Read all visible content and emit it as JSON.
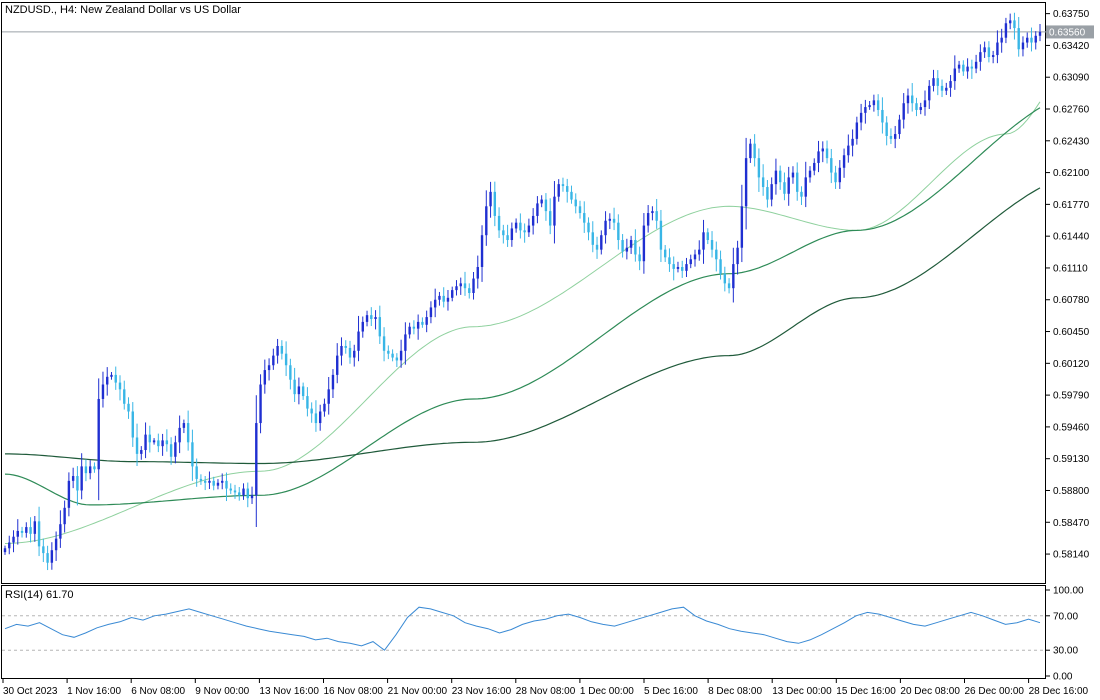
{
  "header": {
    "symbol_label": "NZDUSD., H4:  New Zealand Dollar vs US Dollar"
  },
  "price_badge": {
    "value": "0.63560"
  },
  "rsi_header": {
    "label": "RSI(14) 61.70"
  },
  "colors": {
    "bull_candle": "#1f2fd1",
    "bear_candle": "#38b6e6",
    "ma_fast": "#8fd19e",
    "ma_mid": "#2e8b57",
    "ma_slow": "#1f5a3a",
    "rsi_line": "#3a8ad4",
    "axis": "#000000",
    "price_line": "#9aa0a6"
  },
  "chart_data": [
    {
      "type": "candlestick",
      "title": "NZDUSD., H4:  New Zealand Dollar vs US Dollar",
      "x_tick_labels": [
        "30 Oct 2023",
        "1 Nov 16:00",
        "6 Nov 08:00",
        "9 Nov 00:00",
        "13 Nov 16:00",
        "16 Nov 08:00",
        "21 Nov 00:00",
        "23 Nov 16:00",
        "28 Nov 08:00",
        "1 Dec 00:00",
        "5 Dec 16:00",
        "8 Dec 08:00",
        "13 Dec 00:00",
        "15 Dec 16:00",
        "20 Dec 08:00",
        "26 Dec 00:00",
        "28 Dec 16:00"
      ],
      "y_tick_labels": [
        "0.63750",
        "0.63420",
        "0.63090",
        "0.62760",
        "0.62430",
        "0.62100",
        "0.61770",
        "0.61440",
        "0.61110",
        "0.60780",
        "0.60450",
        "0.60120",
        "0.59790",
        "0.59460",
        "0.59130",
        "0.58800",
        "0.58470",
        "0.58140"
      ],
      "y_ticks": [
        0.6375,
        0.6342,
        0.6309,
        0.6276,
        0.6243,
        0.621,
        0.6177,
        0.6144,
        0.6111,
        0.6078,
        0.6045,
        0.6012,
        0.5979,
        0.5946,
        0.5913,
        0.588,
        0.5847,
        0.5814
      ],
      "ylim": [
        0.5785,
        0.6385
      ],
      "current_price": 0.6356,
      "closes": [
        0.582,
        0.5826,
        0.5832,
        0.5838,
        0.5836,
        0.5842,
        0.5835,
        0.5848,
        0.5822,
        0.5815,
        0.5805,
        0.5818,
        0.583,
        0.5845,
        0.5862,
        0.589,
        0.5895,
        0.588,
        0.5905,
        0.5898,
        0.5905,
        0.5902,
        0.5975,
        0.599,
        0.5998,
        0.6,
        0.5992,
        0.5985,
        0.597,
        0.5962,
        0.5935,
        0.5918,
        0.5922,
        0.5938,
        0.593,
        0.5932,
        0.5926,
        0.5932,
        0.5928,
        0.5915,
        0.593,
        0.5945,
        0.595,
        0.593,
        0.5905,
        0.5892,
        0.589,
        0.5888,
        0.589,
        0.5885,
        0.5888,
        0.589,
        0.5882,
        0.588,
        0.5878,
        0.5875,
        0.5882,
        0.5872,
        0.5875,
        0.595,
        0.599,
        0.6005,
        0.601,
        0.602,
        0.603,
        0.6022,
        0.601,
        0.5995,
        0.598,
        0.5988,
        0.5978,
        0.5965,
        0.596,
        0.595,
        0.5962,
        0.597,
        0.5985,
        0.6,
        0.602,
        0.603,
        0.6028,
        0.6018,
        0.6025,
        0.6045,
        0.6055,
        0.6062,
        0.6058,
        0.606,
        0.604,
        0.6025,
        0.6022,
        0.6018,
        0.6015,
        0.6025,
        0.6042,
        0.605,
        0.6048,
        0.6055,
        0.6052,
        0.606,
        0.607,
        0.6078,
        0.6082,
        0.6076,
        0.608,
        0.6088,
        0.6092,
        0.6095,
        0.609,
        0.6085,
        0.61,
        0.6112,
        0.6145,
        0.6175,
        0.619,
        0.6165,
        0.615,
        0.6145,
        0.614,
        0.6152,
        0.6158,
        0.615,
        0.6148,
        0.6155,
        0.6165,
        0.6178,
        0.6182,
        0.617,
        0.6155,
        0.6185,
        0.6198,
        0.6196,
        0.619,
        0.6182,
        0.6175,
        0.6168,
        0.6158,
        0.6148,
        0.6135,
        0.613,
        0.6145,
        0.616,
        0.6162,
        0.6158,
        0.614,
        0.6128,
        0.6132,
        0.614,
        0.6125,
        0.6118,
        0.6155,
        0.6168,
        0.617,
        0.616,
        0.613,
        0.6122,
        0.6115,
        0.611,
        0.6112,
        0.6108,
        0.6115,
        0.612,
        0.6125,
        0.613,
        0.6148,
        0.614,
        0.613,
        0.612,
        0.6105,
        0.6095,
        0.609,
        0.6115,
        0.6132,
        0.6175,
        0.6225,
        0.624,
        0.6225,
        0.6205,
        0.6195,
        0.6182,
        0.6198,
        0.6212,
        0.62,
        0.6188,
        0.6205,
        0.621,
        0.619,
        0.6185,
        0.6205,
        0.6212,
        0.622,
        0.6232,
        0.6235,
        0.6225,
        0.621,
        0.62,
        0.6215,
        0.6228,
        0.6238,
        0.6245,
        0.6262,
        0.6272,
        0.6278,
        0.628,
        0.6285,
        0.6275,
        0.6262,
        0.6248,
        0.6245,
        0.625,
        0.6265,
        0.6282,
        0.629,
        0.6282,
        0.6275,
        0.6278,
        0.6285,
        0.63,
        0.6308,
        0.63,
        0.6295,
        0.6298,
        0.6305,
        0.6318,
        0.6322,
        0.6315,
        0.632,
        0.6318,
        0.6325,
        0.6335,
        0.634,
        0.633,
        0.6332,
        0.6345,
        0.635,
        0.6365,
        0.6368,
        0.636,
        0.6338,
        0.6345,
        0.635,
        0.6345,
        0.6352,
        0.6356
      ],
      "ma_series": [
        {
          "style": "thin light green",
          "start": 0.584,
          "points": [
            [
              0,
              0.5825
            ],
            [
              60,
              0.59
            ],
            [
              110,
              0.605
            ],
            [
              170,
              0.6175
            ],
            [
              200,
              0.615
            ],
            [
              235,
              0.625
            ],
            [
              255,
              0.6345
            ]
          ]
        },
        {
          "style": "medium green",
          "start": 0.589,
          "points": [
            [
              0,
              0.5897
            ],
            [
              20,
              0.5865
            ],
            [
              60,
              0.5875
            ],
            [
              110,
              0.5975
            ],
            [
              170,
              0.6105
            ],
            [
              200,
              0.615
            ],
            [
              255,
              0.6295
            ]
          ]
        },
        {
          "style": "dark green",
          "start": 0.592,
          "points": [
            [
              0,
              0.5918
            ],
            [
              30,
              0.591
            ],
            [
              60,
              0.5908
            ],
            [
              110,
              0.593
            ],
            [
              170,
              0.602
            ],
            [
              200,
              0.608
            ],
            [
              255,
              0.621
            ]
          ]
        }
      ]
    },
    {
      "type": "line",
      "title": "RSI(14) 61.70",
      "y_tick_labels": [
        "100.00",
        "70.00",
        "30.00",
        "0.00"
      ],
      "y_ticks": [
        100,
        70,
        30,
        0
      ],
      "ylim": [
        0,
        100
      ],
      "levels": [
        70,
        30
      ],
      "current_value": 61.7,
      "values": [
        55,
        60,
        58,
        62,
        55,
        48,
        45,
        50,
        56,
        60,
        63,
        68,
        65,
        70,
        72,
        75,
        78,
        74,
        70,
        66,
        62,
        58,
        55,
        52,
        50,
        48,
        46,
        42,
        44,
        40,
        38,
        35,
        40,
        30,
        48,
        68,
        80,
        78,
        74,
        70,
        62,
        58,
        55,
        50,
        54,
        60,
        64,
        66,
        70,
        72,
        68,
        63,
        60,
        58,
        62,
        66,
        70,
        74,
        78,
        80,
        70,
        64,
        60,
        55,
        52,
        50,
        48,
        44,
        40,
        38,
        42,
        48,
        55,
        62,
        70,
        74,
        72,
        68,
        64,
        60,
        58,
        62,
        66,
        70,
        74,
        70,
        65,
        60,
        62,
        66,
        62
      ]
    }
  ]
}
